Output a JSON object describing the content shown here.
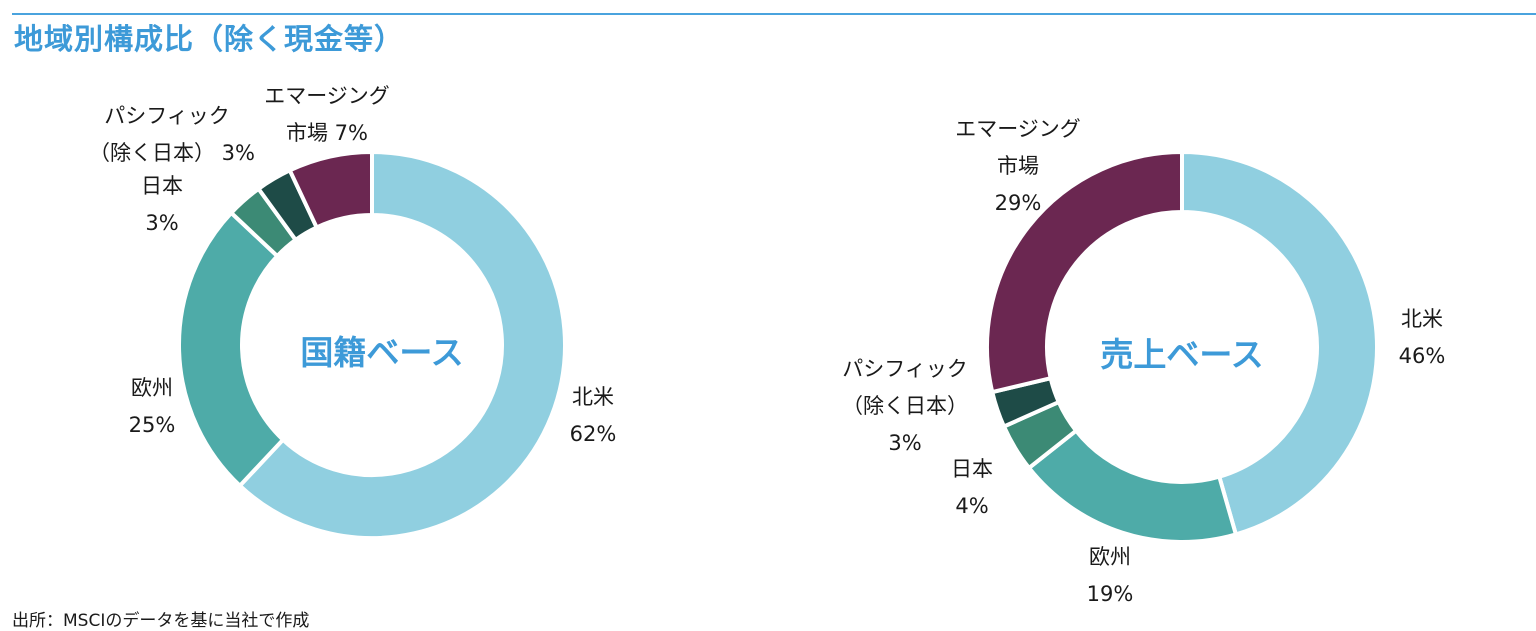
{
  "title": "地域別構成比（除く現金等）",
  "source": "出所：MSCIのデータを基に当社で作成",
  "colors": {
    "north_america": "#90cfe0",
    "europe": "#4eaba8",
    "japan": "#3c8a75",
    "pacific": "#1e4b47",
    "emerging": "#6b2751",
    "title": "#3d9ad8"
  },
  "chart_data": [
    {
      "type": "pie",
      "title": "国籍ベース",
      "slices": [
        {
          "name": "北米",
          "value": 62,
          "color": "#90cfe0",
          "label_lines": [
            "北米",
            "62%"
          ]
        },
        {
          "name": "欧州",
          "value": 25,
          "color": "#4eaba8",
          "label_lines": [
            "欧州",
            "25%"
          ]
        },
        {
          "name": "日本",
          "value": 3,
          "color": "#3c8a75",
          "label_lines": [
            "日本",
            "3%"
          ]
        },
        {
          "name": "パシフィック（除く日本）",
          "value": 3,
          "color": "#1e4b47",
          "label_lines": [
            "パシフィック",
            "（除く日本） 3%"
          ]
        },
        {
          "name": "エマージング市場",
          "value": 7,
          "color": "#6b2751",
          "label_lines": [
            "エマージング",
            "市場 7%"
          ]
        }
      ]
    },
    {
      "type": "pie",
      "title": "売上ベース",
      "slices": [
        {
          "name": "北米",
          "value": 46,
          "color": "#90cfe0",
          "label_lines": [
            "北米",
            "46%"
          ]
        },
        {
          "name": "欧州",
          "value": 19,
          "color": "#4eaba8",
          "label_lines": [
            "欧州",
            "19%"
          ]
        },
        {
          "name": "日本",
          "value": 4,
          "color": "#3c8a75",
          "label_lines": [
            "日本",
            "4%"
          ]
        },
        {
          "name": "パシフィック（除く日本）",
          "value": 3,
          "color": "#1e4b47",
          "label_lines": [
            "パシフィック",
            "（除く日本）",
            "3%"
          ]
        },
        {
          "name": "エマージング市場",
          "value": 29,
          "color": "#6b2751",
          "label_lines": [
            "エマージング",
            "市場",
            "29%"
          ]
        }
      ]
    }
  ]
}
